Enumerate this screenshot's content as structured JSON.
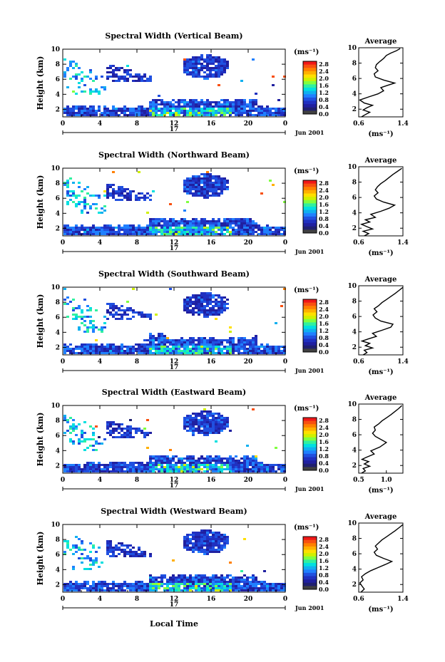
{
  "figure": {
    "bottom_xlabel": "Local Time",
    "day_label": "17",
    "date_label": "Jun 2001"
  },
  "colorbar": {
    "unit": "(ms⁻¹)",
    "ticks": [
      "2.8",
      "2.4",
      "2.0",
      "1.6",
      "1.2",
      "0.8",
      "0.4",
      "0.0"
    ],
    "colors": [
      "#f01818",
      "#f85010",
      "#ff8000",
      "#ffb000",
      "#ffe000",
      "#d0f000",
      "#80ff40",
      "#30f0a0",
      "#00e0e0",
      "#10b0f0",
      "#2080ff",
      "#2050e0",
      "#2030c0",
      "#2020a0",
      "#202070",
      "#404040"
    ]
  },
  "chart_data": [
    {
      "type": "heatmap",
      "title": "Spectral Width (Vertical Beam)",
      "ylabel": "Height (km)",
      "xticks": [
        "0",
        "4",
        "8",
        "12",
        "16",
        "20",
        "0"
      ],
      "yticks": [
        "2",
        "4",
        "6",
        "8",
        "10"
      ],
      "xlim": [
        0,
        24
      ],
      "ylim": [
        1,
        10
      ],
      "profile": {
        "title": "Average",
        "xlabel": "(ms⁻¹)",
        "xticks": [
          "0.6",
          "1.4"
        ],
        "xlim": [
          0.6,
          1.4
        ],
        "yticks": [
          "2",
          "4",
          "6",
          "8",
          "10"
        ],
        "ylim": [
          1,
          10
        ],
        "x": [
          0.65,
          0.72,
          0.8,
          0.68,
          0.75,
          0.85,
          0.7,
          0.62,
          0.78,
          0.95,
          1.05,
          1.0,
          1.12,
          1.25,
          1.05,
          0.9,
          0.88,
          0.95,
          0.9,
          0.92,
          0.98,
          1.05,
          1.1,
          1.18,
          1.28,
          1.35
        ],
        "y": [
          1.0,
          1.3,
          1.6,
          1.9,
          2.2,
          2.5,
          2.8,
          3.2,
          3.6,
          4.0,
          4.4,
          4.8,
          5.1,
          5.4,
          5.8,
          6.2,
          6.6,
          7.0,
          7.4,
          7.8,
          8.2,
          8.6,
          9.0,
          9.3,
          9.6,
          9.9
        ]
      }
    },
    {
      "type": "heatmap",
      "title": "Spectral Width (Northward Beam)",
      "ylabel": "Height (km)",
      "xticks": [
        "0",
        "4",
        "8",
        "12",
        "16",
        "20",
        "0"
      ],
      "yticks": [
        "2",
        "4",
        "6",
        "8",
        "10"
      ],
      "xlim": [
        0,
        24
      ],
      "ylim": [
        1,
        10
      ],
      "profile": {
        "title": "Average",
        "xlabel": "(ms⁻¹)",
        "xticks": [
          "0.6",
          "1.4"
        ],
        "xlim": [
          0.6,
          1.4
        ],
        "yticks": [
          "2",
          "4",
          "6",
          "8",
          "10"
        ],
        "ylim": [
          1,
          10
        ],
        "x": [
          0.7,
          0.78,
          0.68,
          0.85,
          0.75,
          0.65,
          0.8,
          0.72,
          0.9,
          0.82,
          1.0,
          1.15,
          1.25,
          1.05,
          0.92,
          0.88,
          0.95,
          0.9,
          0.94,
          1.0,
          1.08,
          1.15,
          1.22,
          1.3,
          1.38
        ],
        "y": [
          1.0,
          1.3,
          1.6,
          1.9,
          2.2,
          2.5,
          2.8,
          3.1,
          3.4,
          3.8,
          4.2,
          4.6,
          5.0,
          5.4,
          5.8,
          6.2,
          6.6,
          7.0,
          7.4,
          7.8,
          8.2,
          8.6,
          9.0,
          9.4,
          9.8
        ]
      }
    },
    {
      "type": "heatmap",
      "title": "Spectral Width (Southward Beam)",
      "ylabel": "Height (km)",
      "xticks": [
        "0",
        "4",
        "8",
        "12",
        "16",
        "20",
        "0"
      ],
      "yticks": [
        "2",
        "4",
        "6",
        "8",
        "10"
      ],
      "xlim": [
        0,
        24
      ],
      "ylim": [
        1,
        10
      ],
      "profile": {
        "title": "Average",
        "xlabel": "(ms⁻¹)",
        "xticks": [
          "0.6",
          "1.4"
        ],
        "xlim": [
          0.6,
          1.4
        ],
        "yticks": [
          "2",
          "4",
          "6",
          "8",
          "10"
        ],
        "ylim": [
          1,
          10
        ],
        "x": [
          0.68,
          0.75,
          0.7,
          0.85,
          0.72,
          0.8,
          0.66,
          0.78,
          0.92,
          0.85,
          1.02,
          1.18,
          1.22,
          1.0,
          0.9,
          0.86,
          0.93,
          0.88,
          0.96,
          1.02,
          1.1,
          1.18,
          1.26,
          1.33,
          1.4
        ],
        "y": [
          1.0,
          1.3,
          1.6,
          1.9,
          2.2,
          2.5,
          2.8,
          3.1,
          3.4,
          3.8,
          4.2,
          4.6,
          5.0,
          5.4,
          5.8,
          6.2,
          6.6,
          7.0,
          7.4,
          7.8,
          8.2,
          8.6,
          9.0,
          9.4,
          9.8
        ]
      }
    },
    {
      "type": "heatmap",
      "title": "Spectral Width (Eastward Beam)",
      "ylabel": "Height (km)",
      "xticks": [
        "0",
        "4",
        "8",
        "12",
        "16",
        "20",
        "0"
      ],
      "yticks": [
        "2",
        "4",
        "6",
        "8",
        "10"
      ],
      "xlim": [
        0,
        24
      ],
      "ylim": [
        1,
        10
      ],
      "profile": {
        "title": "Average",
        "xlabel": "(ms⁻¹)",
        "xticks": [
          "0.5",
          "1.0"
        ],
        "xlim": [
          0.5,
          1.3
        ],
        "yticks": [
          "2",
          "4",
          "6",
          "8",
          "10"
        ],
        "ylim": [
          1,
          10
        ],
        "x": [
          0.55,
          0.62,
          0.58,
          0.7,
          0.6,
          0.68,
          0.56,
          0.65,
          0.78,
          0.72,
          0.88,
          1.0,
          0.9,
          0.8,
          0.75,
          0.8,
          0.78,
          0.86,
          0.92,
          1.0,
          1.08,
          1.15,
          1.22,
          1.28
        ],
        "y": [
          1.0,
          1.3,
          1.6,
          1.9,
          2.2,
          2.5,
          2.8,
          3.1,
          3.5,
          3.9,
          4.4,
          5.0,
          5.4,
          5.8,
          6.2,
          6.6,
          7.0,
          7.4,
          7.8,
          8.2,
          8.6,
          9.0,
          9.4,
          9.8
        ]
      }
    },
    {
      "type": "heatmap",
      "title": "Spectral Width (Westward Beam)",
      "ylabel": "Height (km)",
      "xticks": [
        "0",
        "4",
        "8",
        "12",
        "16",
        "20",
        "0"
      ],
      "yticks": [
        "2",
        "4",
        "6",
        "8",
        "10"
      ],
      "xlim": [
        0,
        24
      ],
      "ylim": [
        1,
        10
      ],
      "profile": {
        "title": "Average",
        "xlabel": "(ms⁻¹)",
        "xticks": [
          "0.6",
          "1.4"
        ],
        "xlim": [
          0.6,
          1.4
        ],
        "yticks": [
          "2",
          "4",
          "6",
          "8",
          "10"
        ],
        "ylim": [
          1,
          10
        ],
        "x": [
          0.64,
          0.7,
          0.66,
          0.62,
          0.68,
          0.65,
          0.72,
          0.82,
          0.95,
          1.08,
          1.2,
          1.05,
          0.92,
          0.88,
          0.94,
          0.9,
          0.96,
          1.02,
          1.1,
          1.18,
          1.26,
          1.33,
          1.4
        ],
        "y": [
          1.0,
          1.4,
          1.8,
          2.2,
          2.6,
          3.0,
          3.4,
          3.8,
          4.2,
          4.6,
          5.0,
          5.4,
          5.8,
          6.2,
          6.6,
          7.0,
          7.4,
          7.8,
          8.2,
          8.6,
          9.0,
          9.4,
          9.8
        ]
      }
    }
  ]
}
